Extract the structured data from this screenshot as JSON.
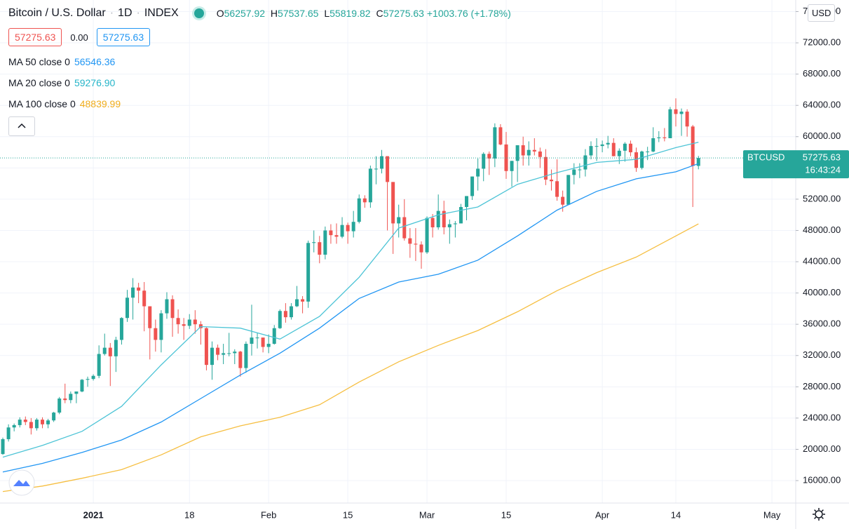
{
  "chart_data": {
    "type": "candlestick",
    "title": "Bitcoin / U.S. Dollar",
    "interval": "1D",
    "exchange": "INDEX",
    "ohlc_labels": [
      "O",
      "H",
      "L",
      "C"
    ],
    "change": "+1003.76 (+1.78%)",
    "spread": "0.00",
    "symbol": "BTCUSD",
    "countdown": "16:43:24",
    "currency": "USD",
    "up_color": "#26a69a",
    "down_color": "#ef5350",
    "xlim": [
      -16.5,
      124.2
    ],
    "ylim": [
      13130,
      77480
    ],
    "xticks": [
      {
        "value": 0,
        "label": "2021"
      },
      {
        "value": 17,
        "label": "18"
      },
      {
        "value": 31,
        "label": "Feb"
      },
      {
        "value": 45,
        "label": "15"
      },
      {
        "value": 59,
        "label": "Mar"
      },
      {
        "value": 73,
        "label": "15"
      },
      {
        "value": 90,
        "label": "Apr"
      },
      {
        "value": 103,
        "label": "14"
      },
      {
        "value": 120,
        "label": "May"
      }
    ],
    "yticks": [
      {
        "value": 16000,
        "label": "16000.00"
      },
      {
        "value": 20000,
        "label": "20000.00"
      },
      {
        "value": 24000,
        "label": "24000.00"
      },
      {
        "value": 28000,
        "label": "28000.00"
      },
      {
        "value": 32000,
        "label": "32000.00"
      },
      {
        "value": 36000,
        "label": "36000.00"
      },
      {
        "value": 40000,
        "label": "40000.00"
      },
      {
        "value": 44000,
        "label": "44000.00"
      },
      {
        "value": 48000,
        "label": "48000.00"
      },
      {
        "value": 52000,
        "label": "52000.00"
      },
      {
        "value": 56000,
        "label": "56000.00"
      },
      {
        "value": 60000,
        "label": "60000.00"
      },
      {
        "value": 64000,
        "label": "64000.00"
      },
      {
        "value": 68000,
        "label": "68000.00"
      },
      {
        "value": 72000,
        "label": "72000.00"
      },
      {
        "value": 76000,
        "label": "76000.00"
      }
    ],
    "x": [
      -16,
      -15,
      -14,
      -13,
      -12,
      -11,
      -10,
      -9,
      -8,
      -7,
      -6,
      -5,
      -4,
      -3,
      -2,
      -1,
      0,
      1,
      2,
      3,
      4,
      5,
      6,
      7,
      8,
      9,
      10,
      11,
      12,
      13,
      14,
      15,
      16,
      17,
      18,
      19,
      20,
      21,
      22,
      23,
      24,
      25,
      26,
      27,
      28,
      29,
      30,
      31,
      32,
      33,
      34,
      35,
      36,
      37,
      38,
      39,
      40,
      41,
      42,
      43,
      44,
      45,
      46,
      47,
      48,
      49,
      50,
      51,
      52,
      53,
      54,
      55,
      56,
      57,
      58,
      59,
      60,
      61,
      62,
      63,
      64,
      65,
      66,
      67,
      68,
      69,
      70,
      71,
      72,
      73,
      74,
      75,
      76,
      77,
      78,
      79,
      80,
      81,
      82,
      83,
      84,
      85,
      86,
      87,
      88,
      89,
      90,
      91,
      92,
      93,
      94,
      95,
      96,
      97,
      98,
      99,
      100,
      101,
      102,
      103,
      104,
      105,
      106,
      107
    ],
    "candles": [
      [
        19400,
        21500,
        19300,
        21300
      ],
      [
        21300,
        23200,
        21000,
        22800
      ],
      [
        22800,
        23300,
        22300,
        23100
      ],
      [
        23100,
        24100,
        22800,
        23800
      ],
      [
        23800,
        24200,
        23100,
        23500
      ],
      [
        23500,
        24000,
        21900,
        22700
      ],
      [
        22700,
        24000,
        22400,
        23800
      ],
      [
        23800,
        24100,
        22700,
        23200
      ],
      [
        23200,
        23900,
        22700,
        23700
      ],
      [
        23700,
        24800,
        23500,
        24700
      ],
      [
        24700,
        26700,
        24500,
        26500
      ],
      [
        26500,
        28400,
        25900,
        26300
      ],
      [
        26300,
        27400,
        25900,
        27100
      ],
      [
        27100,
        27400,
        25900,
        27400
      ],
      [
        27400,
        29000,
        27300,
        28900
      ],
      [
        28900,
        29300,
        28000,
        29000
      ],
      [
        29000,
        29600,
        28800,
        29400
      ],
      [
        29400,
        33300,
        29100,
        32200
      ],
      [
        32200,
        34800,
        32000,
        33000
      ],
      [
        33000,
        33600,
        28100,
        31900
      ],
      [
        31900,
        34400,
        29900,
        34000
      ],
      [
        34000,
        36900,
        33400,
        36800
      ],
      [
        36800,
        40400,
        36300,
        39400
      ],
      [
        39400,
        41900,
        36600,
        40700
      ],
      [
        40700,
        41300,
        38700,
        40300
      ],
      [
        40300,
        41400,
        35100,
        38300
      ],
      [
        38300,
        38300,
        31500,
        35500
      ],
      [
        35500,
        36600,
        32500,
        34000
      ],
      [
        34000,
        37800,
        32400,
        37400
      ],
      [
        37400,
        40100,
        36700,
        39200
      ],
      [
        39200,
        39700,
        34400,
        36800
      ],
      [
        36800,
        37900,
        34800,
        36000
      ],
      [
        36000,
        36800,
        34000,
        35800
      ],
      [
        35800,
        37300,
        35400,
        36600
      ],
      [
        36600,
        37800,
        34800,
        36000
      ],
      [
        36000,
        36400,
        33400,
        35500
      ],
      [
        35500,
        35600,
        30100,
        30800
      ],
      [
        30800,
        33800,
        28900,
        33000
      ],
      [
        33000,
        33400,
        31400,
        32100
      ],
      [
        32100,
        33500,
        30900,
        32300
      ],
      [
        32300,
        34900,
        31900,
        32300
      ],
      [
        32300,
        32800,
        30900,
        32500
      ],
      [
        32500,
        32600,
        29300,
        30400
      ],
      [
        30400,
        33800,
        29800,
        33500
      ],
      [
        33500,
        38500,
        32000,
        34300
      ],
      [
        34300,
        34900,
        32900,
        34300
      ],
      [
        34300,
        34300,
        32400,
        33100
      ],
      [
        33100,
        34700,
        32300,
        33500
      ],
      [
        33500,
        35900,
        33400,
        35500
      ],
      [
        35500,
        37900,
        35400,
        37700
      ],
      [
        37700,
        38700,
        36200,
        36900
      ],
      [
        36900,
        38700,
        36600,
        38300
      ],
      [
        38300,
        40900,
        38200,
        39200
      ],
      [
        39200,
        39600,
        37400,
        38900
      ],
      [
        38900,
        46700,
        38100,
        46400
      ],
      [
        46400,
        48000,
        45200,
        46500
      ],
      [
        46500,
        47300,
        43800,
        44900
      ],
      [
        44900,
        48500,
        44300,
        48000
      ],
      [
        48000,
        48800,
        46300,
        47400
      ],
      [
        47400,
        48900,
        46300,
        47200
      ],
      [
        47200,
        49700,
        47000,
        48700
      ],
      [
        48700,
        49000,
        46300,
        47900
      ],
      [
        47900,
        50500,
        47100,
        49100
      ],
      [
        49100,
        52600,
        48900,
        52100
      ],
      [
        52100,
        52500,
        50900,
        51600
      ],
      [
        51600,
        56300,
        50900,
        55900
      ],
      [
        55900,
        57500,
        53900,
        55900
      ],
      [
        55900,
        58300,
        55300,
        57500
      ],
      [
        57500,
        57500,
        48000,
        54200
      ],
      [
        54200,
        54200,
        45000,
        48900
      ],
      [
        48900,
        51300,
        47100,
        49700
      ],
      [
        49700,
        52000,
        46700,
        47000
      ],
      [
        47000,
        48300,
        44500,
        46300
      ],
      [
        46300,
        48300,
        44100,
        46200
      ],
      [
        46200,
        46600,
        43100,
        45200
      ],
      [
        45200,
        49800,
        45000,
        49600
      ],
      [
        49600,
        50100,
        47100,
        48400
      ],
      [
        48400,
        52600,
        48100,
        50500
      ],
      [
        50500,
        51800,
        47500,
        48400
      ],
      [
        48400,
        49400,
        46300,
        48800
      ],
      [
        48800,
        49200,
        47100,
        48900
      ],
      [
        48900,
        51400,
        48900,
        51000
      ],
      [
        51000,
        52400,
        49300,
        52400
      ],
      [
        52400,
        54900,
        51900,
        54900
      ],
      [
        54900,
        57200,
        53100,
        55900
      ],
      [
        55900,
        58000,
        54300,
        57800
      ],
      [
        57800,
        58100,
        55100,
        57200
      ],
      [
        57200,
        61700,
        56100,
        61200
      ],
      [
        61200,
        61600,
        58900,
        59000
      ],
      [
        59000,
        60600,
        54600,
        55600
      ],
      [
        55600,
        56900,
        53600,
        56900
      ],
      [
        56900,
        58900,
        54200,
        58900
      ],
      [
        58900,
        60000,
        56300,
        57600
      ],
      [
        57600,
        59400,
        56300,
        58300
      ],
      [
        58300,
        59800,
        57600,
        58100
      ],
      [
        58100,
        58600,
        56000,
        57400
      ],
      [
        57400,
        58400,
        53800,
        54500
      ],
      [
        54500,
        55800,
        53100,
        54300
      ],
      [
        54300,
        57100,
        51800,
        52300
      ],
      [
        52300,
        53100,
        50400,
        51300
      ],
      [
        51300,
        55100,
        51300,
        55100
      ],
      [
        55100,
        56600,
        53900,
        55800
      ],
      [
        55800,
        56600,
        54700,
        55800
      ],
      [
        55800,
        58400,
        54900,
        57600
      ],
      [
        57600,
        59400,
        57100,
        58800
      ],
      [
        58800,
        59800,
        56900,
        58800
      ],
      [
        58800,
        59500,
        58000,
        59000
      ],
      [
        59000,
        60100,
        58500,
        59200
      ],
      [
        59200,
        59800,
        57500,
        57500
      ],
      [
        57500,
        58500,
        56500,
        58200
      ],
      [
        58200,
        59300,
        56800,
        59100
      ],
      [
        59100,
        59500,
        57500,
        58000
      ],
      [
        58000,
        58600,
        55500,
        56000
      ],
      [
        56000,
        58200,
        55800,
        58100
      ],
      [
        58100,
        58700,
        57000,
        58100
      ],
      [
        58100,
        61200,
        58000,
        59800
      ],
      [
        59800,
        60700,
        59300,
        59900
      ],
      [
        59900,
        61100,
        59400,
        59800
      ],
      [
        59800,
        63800,
        59800,
        63500
      ],
      [
        63500,
        64900,
        61300,
        62900
      ],
      [
        62900,
        63600,
        60100,
        63200
      ],
      [
        63200,
        63500,
        60000,
        61300
      ],
      [
        61300,
        61500,
        51000,
        56258
      ],
      [
        56257.92,
        57537.65,
        55819.82,
        57275.63
      ]
    ],
    "series": [
      {
        "name": "MA 50 close 0",
        "color": "#2196f3",
        "x": [
          -16,
          -9,
          -2,
          5,
          12,
          19,
          26,
          33,
          40,
          47,
          54,
          61,
          68,
          75,
          82,
          89,
          96,
          103,
          107
        ],
        "values": [
          17100,
          18200,
          19600,
          21200,
          23500,
          26500,
          29500,
          32300,
          35500,
          39300,
          41400,
          42400,
          44200,
          47300,
          50600,
          53000,
          54600,
          55500,
          56546.36
        ],
        "value_labels": [
          null,
          null,
          null,
          null,
          null,
          null,
          null,
          null,
          null,
          null,
          null,
          null,
          null,
          null,
          null,
          null,
          null,
          null,
          "56546.36"
        ]
      },
      {
        "name": "MA 20 close 0",
        "color": "#4dc4d6",
        "x": [
          -16,
          -9,
          -2,
          5,
          12,
          19,
          26,
          33,
          40,
          47,
          54,
          61,
          68,
          75,
          82,
          89,
          96,
          103,
          107
        ],
        "values": [
          19000,
          20500,
          22300,
          25500,
          30800,
          35700,
          35500,
          34100,
          37000,
          42000,
          48300,
          50000,
          51000,
          53900,
          55400,
          56700,
          57100,
          58600,
          59276.9
        ],
        "value_labels": [
          null,
          null,
          null,
          null,
          null,
          null,
          null,
          null,
          null,
          null,
          null,
          null,
          null,
          null,
          null,
          null,
          null,
          null,
          "59276.90"
        ]
      },
      {
        "name": "MA 100 close 0",
        "color": "#f6bf42",
        "x": [
          -16,
          -9,
          -2,
          5,
          12,
          19,
          26,
          33,
          40,
          47,
          54,
          61,
          68,
          75,
          82,
          89,
          96,
          103,
          107
        ],
        "values": [
          14600,
          15300,
          16300,
          17400,
          19300,
          21600,
          23000,
          24100,
          25700,
          28600,
          31200,
          33300,
          35200,
          37600,
          40300,
          42600,
          44600,
          47300,
          48839.99
        ],
        "value_labels": [
          null,
          null,
          null,
          null,
          null,
          null,
          null,
          null,
          null,
          null,
          null,
          null,
          null,
          null,
          null,
          null,
          null,
          null,
          "48839.99"
        ]
      }
    ]
  }
}
